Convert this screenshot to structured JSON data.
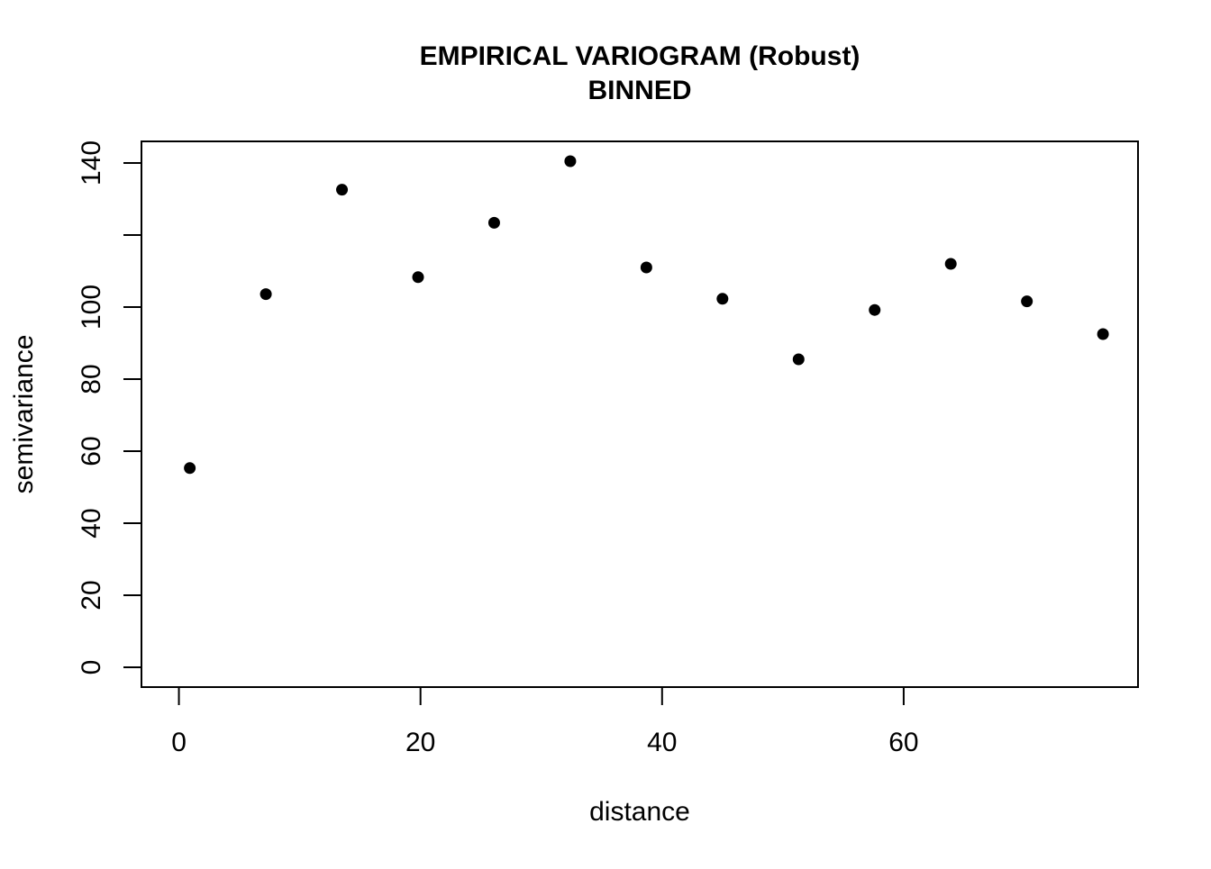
{
  "chart_data": {
    "type": "scatter",
    "title": "EMPIRICAL VARIOGRAM (Robust)",
    "subtitle": "BINNED",
    "xlabel": "distance",
    "ylabel": "semivariance",
    "xlim": [
      -3.1,
      79.4
    ],
    "ylim": [
      -5.5,
      146
    ],
    "x_ticks": [
      0,
      20,
      40,
      60
    ],
    "x_tick_labels": [
      "0",
      "20",
      "40",
      "60"
    ],
    "y_ticks": [
      0,
      20,
      40,
      60,
      80,
      100,
      120,
      140
    ],
    "y_tick_labels": [
      "0",
      "20",
      "40",
      "60",
      "80",
      "100",
      "",
      "140"
    ],
    "grid": false,
    "marker_color": "#000000",
    "series": [
      {
        "x": [
          0.9,
          7.2,
          13.5,
          19.8,
          26.1,
          32.4,
          38.7,
          45.0,
          51.3,
          57.6,
          63.9,
          70.2,
          76.5
        ],
        "y": [
          55.3,
          103.6,
          132.6,
          108.3,
          123.4,
          140.5,
          111.0,
          102.3,
          85.5,
          99.2,
          112.0,
          101.6,
          92.5
        ]
      }
    ]
  }
}
